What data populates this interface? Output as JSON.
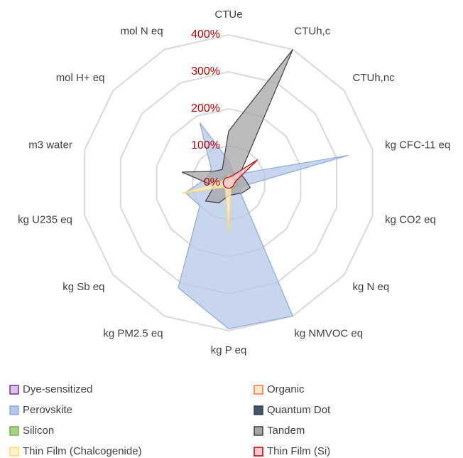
{
  "chart_data": {
    "type": "radar",
    "categories": [
      "CTUe",
      "CTUh,c",
      "CTUh,nc",
      "kg CFC-11 eq",
      "kg CO2 eq",
      "kg N eq",
      "kg NMVOC eq",
      "kg P eq",
      "kg PM2.5 eq",
      "kg Sb eq",
      "kg U235 eq",
      "m3 water",
      "mol H+ eq",
      "mol N eq"
    ],
    "ylim": [
      0,
      400
    ],
    "yticks": [
      {
        "value": 0,
        "label": "0%"
      },
      {
        "value": 100,
        "label": "100%"
      },
      {
        "value": 200,
        "label": "200%"
      },
      {
        "value": 300,
        "label": "300%"
      },
      {
        "value": 400,
        "label": "400%"
      }
    ],
    "grid": true,
    "legend": "bottom",
    "series": [
      {
        "name": "Dye-sensitized",
        "color": "#d9c3e9",
        "edge": "#7030a0",
        "values": [
          10,
          10,
          15,
          10,
          10,
          10,
          10,
          10,
          10,
          10,
          10,
          10,
          10,
          10
        ]
      },
      {
        "name": "Organic",
        "color": "#fbe5d6",
        "edge": "#ed7d31",
        "values": [
          10,
          10,
          20,
          10,
          10,
          10,
          10,
          10,
          10,
          10,
          10,
          10,
          10,
          10
        ]
      },
      {
        "name": "Perovskite",
        "color": "#b4c7e7",
        "edge": "#8faadc",
        "values": [
          60,
          30,
          40,
          333,
          40,
          40,
          400,
          395,
          315,
          100,
          120,
          60,
          60,
          180
        ]
      },
      {
        "name": "Quantum Dot",
        "color": "#44546a",
        "edge": "#333f50",
        "values": [
          15,
          15,
          20,
          15,
          15,
          15,
          15,
          15,
          15,
          15,
          15,
          15,
          15,
          15
        ]
      },
      {
        "name": "Silicon",
        "color": "#a9d18e",
        "edge": "#70ad47",
        "values": [
          20,
          20,
          20,
          20,
          25,
          20,
          20,
          25,
          20,
          20,
          20,
          20,
          20,
          20
        ]
      },
      {
        "name": "Tandem",
        "color": "#a5a5a5",
        "edge": "#404040",
        "values": [
          140,
          400,
          40,
          45,
          60,
          45,
          35,
          35,
          60,
          80,
          40,
          130,
          50,
          40
        ]
      },
      {
        "name": "Thin Film (Chalcogenide)",
        "color": "#fff2cc",
        "edge": "#ffd966",
        "values": [
          20,
          15,
          15,
          15,
          15,
          15,
          15,
          135,
          20,
          20,
          130,
          20,
          15,
          15
        ]
      },
      {
        "name": "Thin Film (Si)",
        "color": "#ffc7ce",
        "edge": "#c00000",
        "values": [
          15,
          20,
          100,
          20,
          15,
          15,
          15,
          15,
          15,
          15,
          15,
          15,
          15,
          15
        ]
      }
    ]
  }
}
